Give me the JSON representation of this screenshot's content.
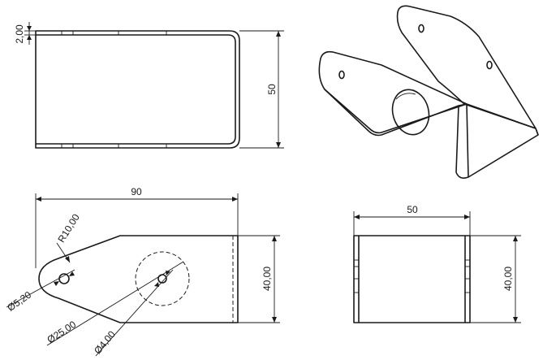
{
  "views": {
    "side": {
      "thickness_label": "2,00",
      "height_label": "50"
    },
    "flat": {
      "length_label": "90",
      "radius_label": "R10,00",
      "small_hole_label": "Ø5,20",
      "large_hole_label": "Ø25,00",
      "mid_hole_label": "Ø4,00",
      "width_label": "40,00"
    },
    "end": {
      "length_label": "50",
      "width_label": "40,00"
    }
  }
}
